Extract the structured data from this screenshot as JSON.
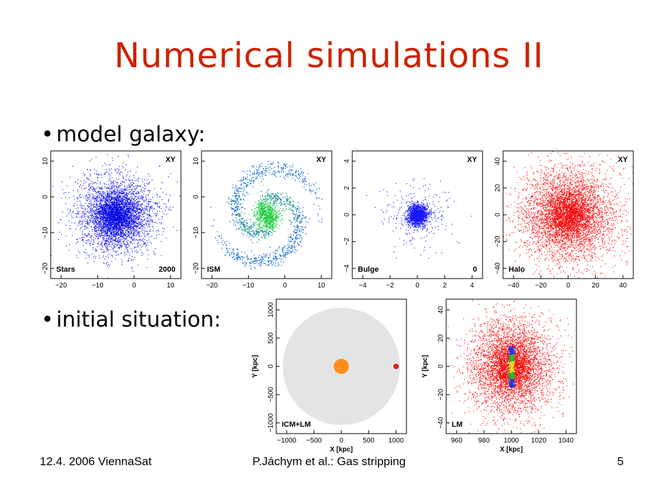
{
  "slide": {
    "title": "Numerical simulations II",
    "bullets": [
      "model galaxy:",
      "initial situation:"
    ],
    "footer": {
      "left": "12.4. 2006 ViennaSat",
      "center": "P.Jáchym et al.: Gas stripping",
      "right": "5"
    }
  },
  "panels": [
    {
      "corner_label": "XY",
      "name_label": "Stars",
      "extra_label": "2000",
      "x_ticks": [
        "−20",
        "−10",
        "0",
        "10"
      ],
      "y_ticks": [
        "−20",
        "−10",
        "0",
        "10"
      ],
      "color": "#1a1aff",
      "style": "disk"
    },
    {
      "corner_label": "XY",
      "name_label": "ISM",
      "extra_label": "",
      "x_ticks": [
        "−20",
        "−10",
        "0",
        "10"
      ],
      "y_ticks": [
        "−20",
        "−10",
        "0",
        "10"
      ],
      "color": "#1a6fd0",
      "accent": "#22cc44",
      "style": "spiral"
    },
    {
      "corner_label": "XY",
      "name_label": "Bulge",
      "extra_label": "0",
      "x_ticks": [
        "−4",
        "−2",
        "0",
        "2",
        "4"
      ],
      "y_ticks": [
        "−4",
        "−2",
        "0",
        "2",
        "4"
      ],
      "color": "#1a1aff",
      "style": "compact"
    },
    {
      "corner_label": "XY",
      "name_label": "Halo",
      "extra_label": "",
      "x_ticks": [
        "−40",
        "−20",
        "0",
        "20",
        "40"
      ],
      "y_ticks": [
        "−40",
        "−20",
        "0",
        "20",
        "40"
      ],
      "color": "#ff1a1a",
      "style": "halo"
    },
    {
      "corner_label": "",
      "name_label": "ICM+LM",
      "extra_label": "",
      "x_ticks": [
        "−1000",
        "−500",
        "0",
        "500",
        "1000"
      ],
      "y_ticks": [
        "−1000",
        "−500",
        "0",
        "500",
        "1000"
      ],
      "xlabel": "X [kpc]",
      "ylabel": "Y [kpc]",
      "cluster_color": "#e4e4e4",
      "core_color": "#ff8c1a",
      "galaxy_color": "#dd2222",
      "style": "cluster"
    },
    {
      "corner_label": "",
      "name_label": "LM",
      "extra_label": "",
      "x_ticks": [
        "960",
        "980",
        "1000",
        "1020",
        "1040"
      ],
      "y_ticks": [
        "−40",
        "−20",
        "0",
        "20",
        "40"
      ],
      "xlabel": "X [kpc]",
      "ylabel": "Y [kpc]",
      "color": "#ff1a1a",
      "disk_colors": [
        "#2233dd",
        "#22bb44",
        "#dddd22"
      ],
      "style": "edgeon"
    }
  ]
}
